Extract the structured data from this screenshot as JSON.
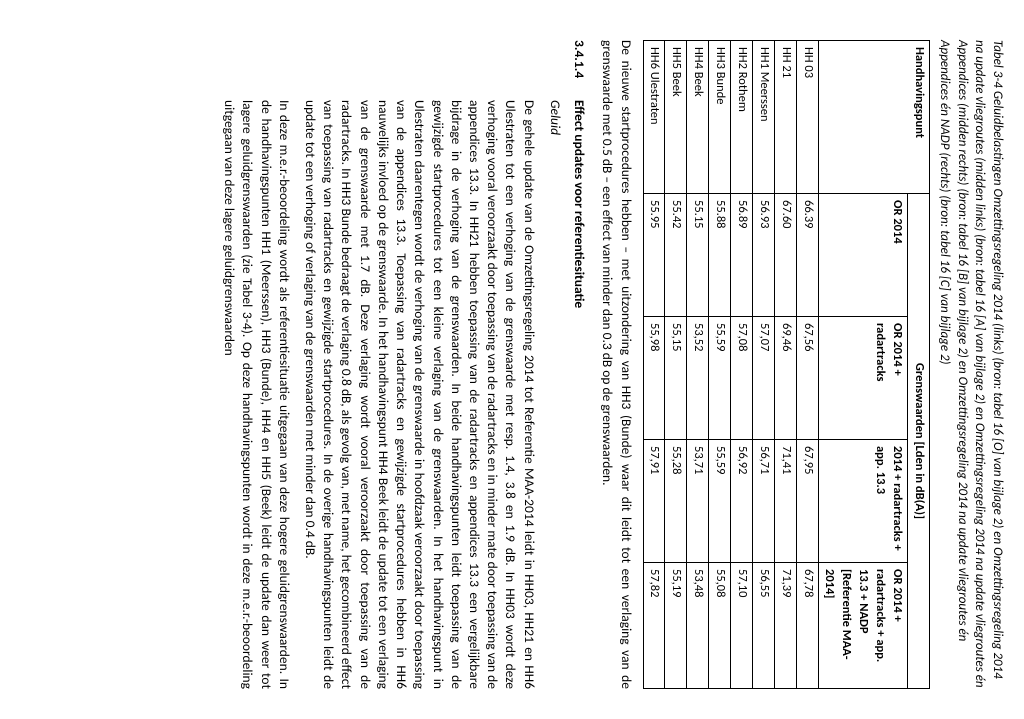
{
  "caption": "Tabel 3-4 Geluidbelastingen Omzettingsregeling 2014 (links) (bron: tabel 16 [O] van bijlage 2) en Omzettingsregeling 2014 na update vliegroutes (midden links) (bron: tabel 16 [A] van bijlage 2) en Omzettingsregeling 2014 na update vliegroutes én Appendices (midden rechts) (bron: tabel 16 [B] van bijlage 2) en Omzettingsregeling 2014 na update vliegroutes én Appendices én NADP (rechts) (bron: tabel 16 [C] van bijlage 2)",
  "table": {
    "header_row1_col1": "Handhavingspunt",
    "header_row1_span": "Grenswaarden [Lden in dB(A)]",
    "header_row2": [
      "OR 2014",
      "OR 2014 + radartracks",
      "2014 + radartracks + app. 13.3",
      "OR 2014 + radartracks + app. 13.3 + NADP [Referentie MAA-2014]"
    ],
    "rows": [
      {
        "hp": "HH 03",
        "v": [
          "66.39",
          "67,56",
          "67,95",
          "67,78"
        ]
      },
      {
        "hp": "HH 21",
        "v": [
          "67.60",
          "69,46",
          "71,41",
          "71,39"
        ]
      },
      {
        "hp": "HH1 Meerssen",
        "v": [
          "56.93",
          "57,07",
          "56,71",
          "56,55"
        ]
      },
      {
        "hp": "HH2 Rothem",
        "v": [
          "56.89",
          "57,08",
          "56,92",
          "57,10"
        ]
      },
      {
        "hp": "HH3 Bunde",
        "v": [
          "55.88",
          "55,59",
          "55,59",
          "55,08"
        ]
      },
      {
        "hp": "HH4 Beek",
        "v": [
          "55.15",
          "53,52",
          "53,71",
          "53,48"
        ]
      },
      {
        "hp": "HH5 Beek",
        "v": [
          "55.42",
          "55,15",
          "55,28",
          "55,19"
        ]
      },
      {
        "hp": "HH6 Ulestraten",
        "v": [
          "55.95",
          "55,98",
          "57,91",
          "57,82"
        ]
      }
    ]
  },
  "para1": "De nieuwe startprocedures hebben – met uitzondering van HH3 (Bunde) waar dit leidt tot een verlaging van de grenswaarde met 0.5 dB – een effect van minder dan 0.3 dB op de grenswaarden.",
  "section": {
    "num": "3.4.1.4",
    "title": "Effect updates voor referentiesituatie"
  },
  "subhead": "Geluid",
  "para2": "De gehele update van de Omzettingsregeling 2014 tot Referentie MAA-2014 leidt in HH03, HH21 en HH6 Ulestraten tot een verhoging van de grenswaarde met resp. 1.4, 3.8 en 1.9 dB. In HH03 wordt deze verhoging vooral veroorzaakt door toepassing van de radartracks en in minder mate door toepassing van de appendices 13.3. In HH21 hebben toepassing van de radartracks en appendices 13.3 een vergelijkbare bijdrage in de verhoging van de grenswaarden. In beide handhavingspunten leidt toepassing van de gewijzigde startprocedures tot een kleine verlaging van de grenswaarden. In het handhavingspunt in Ulestraten daarentegen wordt de verhoging van de grenswaarde in hoofdzaak veroorzaakt door toepassing van de appendices 13.3. Toepassing van radartracks en gewijzigde startprocedures hebben in HH6 nauwelijks invloed op de grenswaarde. In het handhavingspunt HH4 Beek leidt de update tot een verlaging van de grenswaarde met 1.7 dB. Deze verlaging wordt vooral veroorzaakt door toepassing van de radartracks. In HH3 Bunde bedraagt de verlaging 0.8 dB, als gevolg van, met name, het gecombineerd effect van toepassing van radartracks en gewijzigde startprocedures. In de overige handhavingspunten leidt de update tot een verhoging of verlaging van de grenswaarden met minder dan 0.4 dB.",
  "para3": "In deze m.e.r.-beoordeling wordt als referentiesituatie uitgegaan van deze hogere geluidgrenswaarden. In de handhavingspunten HH1 (Meerssen), HH3 (Bunde), HH4 en HH5 (Beek) leidt de update dan weer tot lagere geluidgrenswaarden (zie Tabel 3-4). Op deze handhavingspunten wordt in deze m.e.r.-beoordeling uitgegaan van deze lagere geluidgrenswaarden"
}
